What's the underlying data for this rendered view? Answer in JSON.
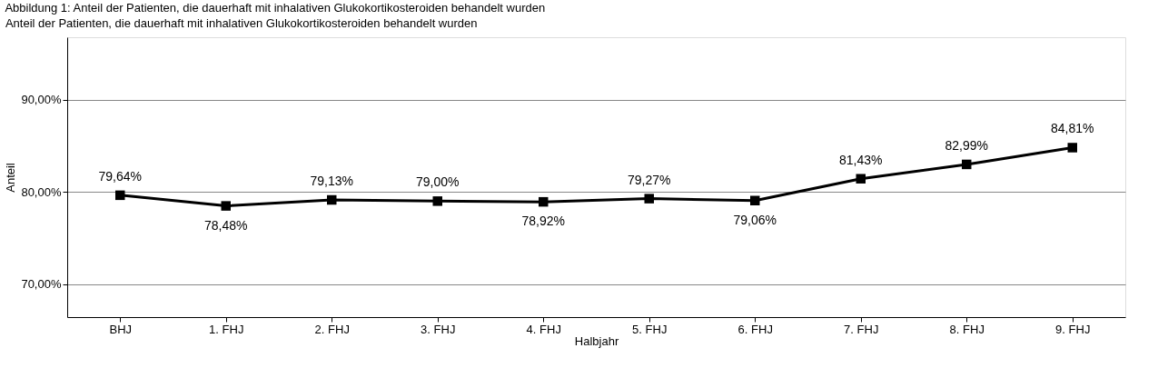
{
  "chart_data": {
    "type": "line",
    "title": "Abbildung 1: Anteil der Patienten, die dauerhaft mit inhalativen Glukokortikosteroiden behandelt wurden",
    "subtitle": "Anteil der Patienten, die dauerhaft mit inhalativen Glukokortikosteroiden behandelt wurden",
    "xlabel": "Halbjahr",
    "ylabel": "Anteil",
    "categories": [
      "BHJ",
      "1. FHJ",
      "2. FHJ",
      "3. FHJ",
      "4. FHJ",
      "5. FHJ",
      "6. FHJ",
      "7. FHJ",
      "8. FHJ",
      "9. FHJ"
    ],
    "series": [
      {
        "color": "#000000",
        "values": [
          79.64,
          78.48,
          79.13,
          79.0,
          78.92,
          79.27,
          79.06,
          81.43,
          82.99,
          84.81
        ],
        "value_labels": [
          "79,64%",
          "78,48%",
          "79,13%",
          "79,00%",
          "78,92%",
          "79,27%",
          "79,06%",
          "81,43%",
          "82,99%",
          "84,81%"
        ]
      }
    ],
    "ylim": [
      66.4,
      96.8
    ],
    "yticks": [
      {
        "value": 70,
        "label": "70,00%"
      },
      {
        "value": 80,
        "label": "80,00%"
      },
      {
        "value": 90,
        "label": "90,00%"
      }
    ],
    "grid": "y",
    "marker": "square",
    "line_style": "solid"
  }
}
